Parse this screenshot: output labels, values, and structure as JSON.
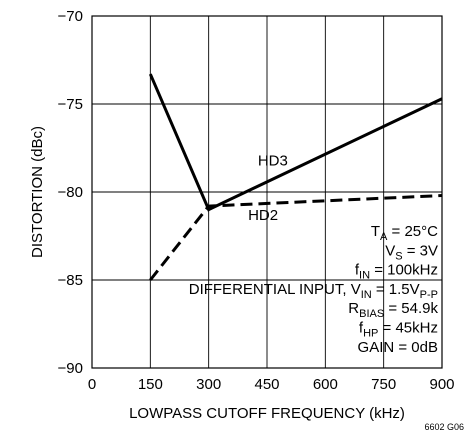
{
  "chart_data": {
    "type": "line",
    "xlabel": "LOWPASS CUTOFF FREQUENCY (kHz)",
    "ylabel": "DISTORTION (dBc)",
    "xlim": [
      0,
      900
    ],
    "ylim": [
      -90,
      -70
    ],
    "x_ticks": [
      "0",
      "150",
      "300",
      "450",
      "600",
      "750",
      "900"
    ],
    "y_ticks": [
      "−90",
      "−85",
      "−80",
      "−75",
      "−70"
    ],
    "grid": true,
    "series": [
      {
        "name": "HD3",
        "style": "solid",
        "x": [
          150,
          300,
          900
        ],
        "y": [
          -73.3,
          -81.0,
          -74.7
        ]
      },
      {
        "name": "HD2",
        "style": "dashed",
        "x": [
          150,
          300,
          900
        ],
        "y": [
          -85.0,
          -80.8,
          -80.2
        ]
      }
    ],
    "conditions": [
      {
        "main": "T",
        "sub": "A",
        "rest": " = 25°C"
      },
      {
        "main": "V",
        "sub": "S",
        "rest": " = 3V"
      },
      {
        "main": "f",
        "sub": "IN",
        "rest": " = 100kHz"
      },
      {
        "main": "DIFFERENTIAL INPUT, V",
        "sub": "IN",
        "rest": " = 1.5V",
        "sub2": "P-P"
      },
      {
        "main": "R",
        "sub": "BIAS",
        "rest": " = 54.9k"
      },
      {
        "main": "f",
        "sub": "HP",
        "rest": " = 45kHz"
      },
      {
        "main": "GAIN = 0dB",
        "sub": "",
        "rest": ""
      }
    ],
    "figure_code": "6602 G06"
  }
}
